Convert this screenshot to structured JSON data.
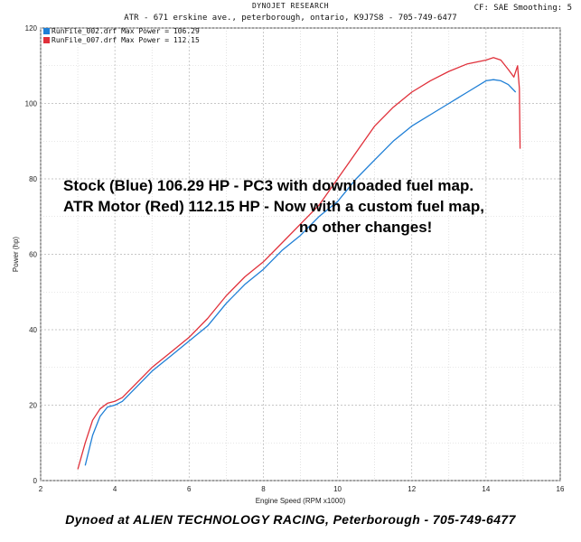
{
  "header": {
    "title": "DYNOJET RESEARCH",
    "subtitle": "ATR - 671 erskine ave., peterborough, ontario, K9J7S8 - 705-749-6477",
    "right": "CF: SAE  Smoothing: 5"
  },
  "legend": [
    {
      "label": "RunFile_002.drf Max Power = 106.29",
      "color": "#1f7fd6"
    },
    {
      "label": "RunFile_007.drf Max Power = 112.15",
      "color": "#e0303a"
    }
  ],
  "overlay": {
    "line1": "Stock (Blue) 106.29 HP - PC3 with downloaded fuel map.",
    "line2": "ATR Motor (Red) 112.15 HP - Now with a custom fuel map,",
    "line3": "no other changes!"
  },
  "footer": "Dynoed at ALIEN TECHNOLOGY RACING, Peterborough - 705-749-6477",
  "chart_data": {
    "type": "line",
    "xlabel": "Engine Speed (RPM x1000)",
    "ylabel": "Power (hp)",
    "xlim": [
      2,
      16
    ],
    "ylim": [
      0,
      120
    ],
    "xticks": [
      2,
      4,
      6,
      8,
      10,
      12,
      14,
      16
    ],
    "yticks": [
      0,
      20,
      40,
      60,
      80,
      100,
      120
    ],
    "grid": true,
    "series": [
      {
        "name": "RunFile_002.drf Max Power = 106.29",
        "color": "#1f7fd6",
        "x": [
          3.2,
          3.4,
          3.6,
          3.8,
          4.0,
          4.2,
          4.5,
          5.0,
          5.5,
          6.0,
          6.5,
          7.0,
          7.5,
          8.0,
          8.5,
          9.0,
          9.5,
          10.0,
          10.5,
          11.0,
          11.5,
          12.0,
          12.5,
          13.0,
          13.5,
          14.0,
          14.2,
          14.4,
          14.6,
          14.8
        ],
        "y": [
          4,
          12,
          17,
          19.5,
          20,
          21,
          24,
          29,
          33,
          37,
          41,
          47,
          52,
          56,
          61,
          65,
          70,
          74,
          80,
          85,
          90,
          94,
          97,
          100,
          103,
          106,
          106.3,
          106,
          105,
          103
        ]
      },
      {
        "name": "RunFile_007.drf Max Power = 112.15",
        "color": "#e0303a",
        "x": [
          3.0,
          3.2,
          3.4,
          3.6,
          3.8,
          4.0,
          4.2,
          4.5,
          5.0,
          5.5,
          6.0,
          6.5,
          7.0,
          7.5,
          8.0,
          8.5,
          9.0,
          9.5,
          10.0,
          10.5,
          11.0,
          11.5,
          12.0,
          12.5,
          13.0,
          13.5,
          14.0,
          14.2,
          14.4,
          14.6,
          14.75,
          14.85,
          14.9,
          14.92
        ],
        "y": [
          3,
          10,
          16,
          19,
          20.5,
          21,
          22,
          25,
          30,
          34,
          38,
          43,
          49,
          54,
          58,
          63,
          68,
          73,
          80,
          87,
          94,
          99,
          103,
          106,
          108.5,
          110.5,
          111.5,
          112.15,
          111.5,
          109,
          107,
          110,
          104,
          88
        ]
      }
    ]
  }
}
